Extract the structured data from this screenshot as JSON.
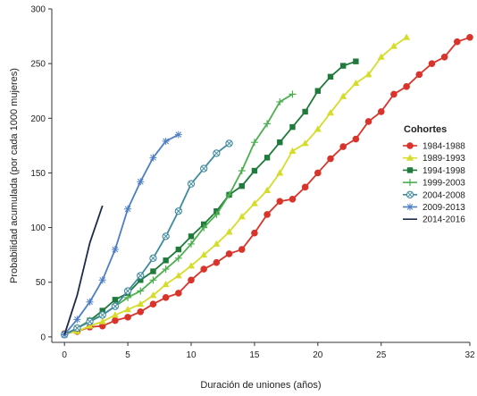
{
  "chart_data": {
    "type": "line",
    "xlabel": "Duración de uniones (años)",
    "ylabel": "Probabilidad acumulada (por cada 1000 mujeres)",
    "xlim": [
      -1,
      32
    ],
    "ylim": [
      -5,
      300
    ],
    "xticks": [
      0,
      5,
      10,
      15,
      20,
      25,
      32
    ],
    "yticks": [
      0,
      50,
      100,
      150,
      200,
      250,
      300
    ],
    "grid": false,
    "legend_title": "Cohortes",
    "legend_position": "right",
    "series": [
      {
        "name": "1984-1988",
        "color": "#d9342b",
        "marker": "circle",
        "x": [
          0,
          1,
          2,
          3,
          4,
          5,
          6,
          7,
          8,
          9,
          10,
          11,
          12,
          13,
          14,
          15,
          16,
          17,
          18,
          19,
          20,
          21,
          22,
          23,
          24,
          25,
          26,
          27,
          28,
          29,
          30,
          31,
          32
        ],
        "y": [
          3,
          5,
          9,
          10,
          15,
          18,
          23,
          30,
          36,
          40,
          52,
          62,
          68,
          76,
          80,
          95,
          112,
          124,
          126,
          137,
          150,
          163,
          174,
          181,
          197,
          206,
          222,
          229,
          240,
          250,
          256,
          270,
          274
        ]
      },
      {
        "name": "1989-1993",
        "color": "#d6dc2a",
        "marker": "triangle",
        "x": [
          0,
          1,
          2,
          3,
          4,
          5,
          6,
          7,
          8,
          9,
          10,
          11,
          12,
          13,
          14,
          15,
          16,
          17,
          18,
          19,
          20,
          21,
          22,
          23,
          24,
          25,
          26,
          27
        ],
        "y": [
          3,
          5,
          10,
          14,
          20,
          25,
          30,
          38,
          48,
          56,
          65,
          75,
          85,
          96,
          110,
          122,
          134,
          150,
          170,
          177,
          190,
          205,
          220,
          232,
          240,
          256,
          266,
          274
        ]
      },
      {
        "name": "1994-1998",
        "color": "#1f7a3c",
        "marker": "square",
        "x": [
          0,
          1,
          2,
          3,
          4,
          5,
          6,
          7,
          8,
          9,
          10,
          11,
          12,
          13,
          14,
          15,
          16,
          17,
          18,
          19,
          20,
          21,
          22,
          23
        ],
        "y": [
          2,
          8,
          15,
          24,
          34,
          40,
          52,
          60,
          70,
          80,
          92,
          103,
          115,
          130,
          138,
          152,
          164,
          178,
          192,
          206,
          225,
          238,
          248,
          252
        ]
      },
      {
        "name": "1999-2003",
        "color": "#4caf4f",
        "marker": "plus",
        "x": [
          0,
          1,
          2,
          3,
          4,
          5,
          6,
          7,
          8,
          9,
          10,
          11,
          12,
          13,
          14,
          15,
          16,
          17,
          18
        ],
        "y": [
          2,
          8,
          15,
          20,
          28,
          36,
          42,
          52,
          62,
          72,
          85,
          100,
          112,
          130,
          152,
          178,
          195,
          215,
          222
        ]
      },
      {
        "name": "2004-2008",
        "color": "#3f8a9e",
        "marker": "circle-x",
        "x": [
          0,
          1,
          2,
          3,
          4,
          5,
          6,
          7,
          8,
          9,
          10,
          11,
          12,
          13
        ],
        "y": [
          2,
          8,
          14,
          20,
          28,
          42,
          56,
          72,
          92,
          115,
          140,
          154,
          168,
          177
        ]
      },
      {
        "name": "2009-2013",
        "color": "#4e7fc4",
        "marker": "star",
        "x": [
          0,
          1,
          2,
          3,
          4,
          5,
          6,
          7,
          8,
          9
        ],
        "y": [
          2,
          16,
          32,
          52,
          80,
          117,
          142,
          164,
          179,
          185
        ]
      },
      {
        "name": "2014-2016",
        "color": "#1d2a4a",
        "marker": "none",
        "x": [
          0,
          1,
          2,
          3
        ],
        "y": [
          2,
          38,
          86,
          120
        ]
      }
    ]
  }
}
